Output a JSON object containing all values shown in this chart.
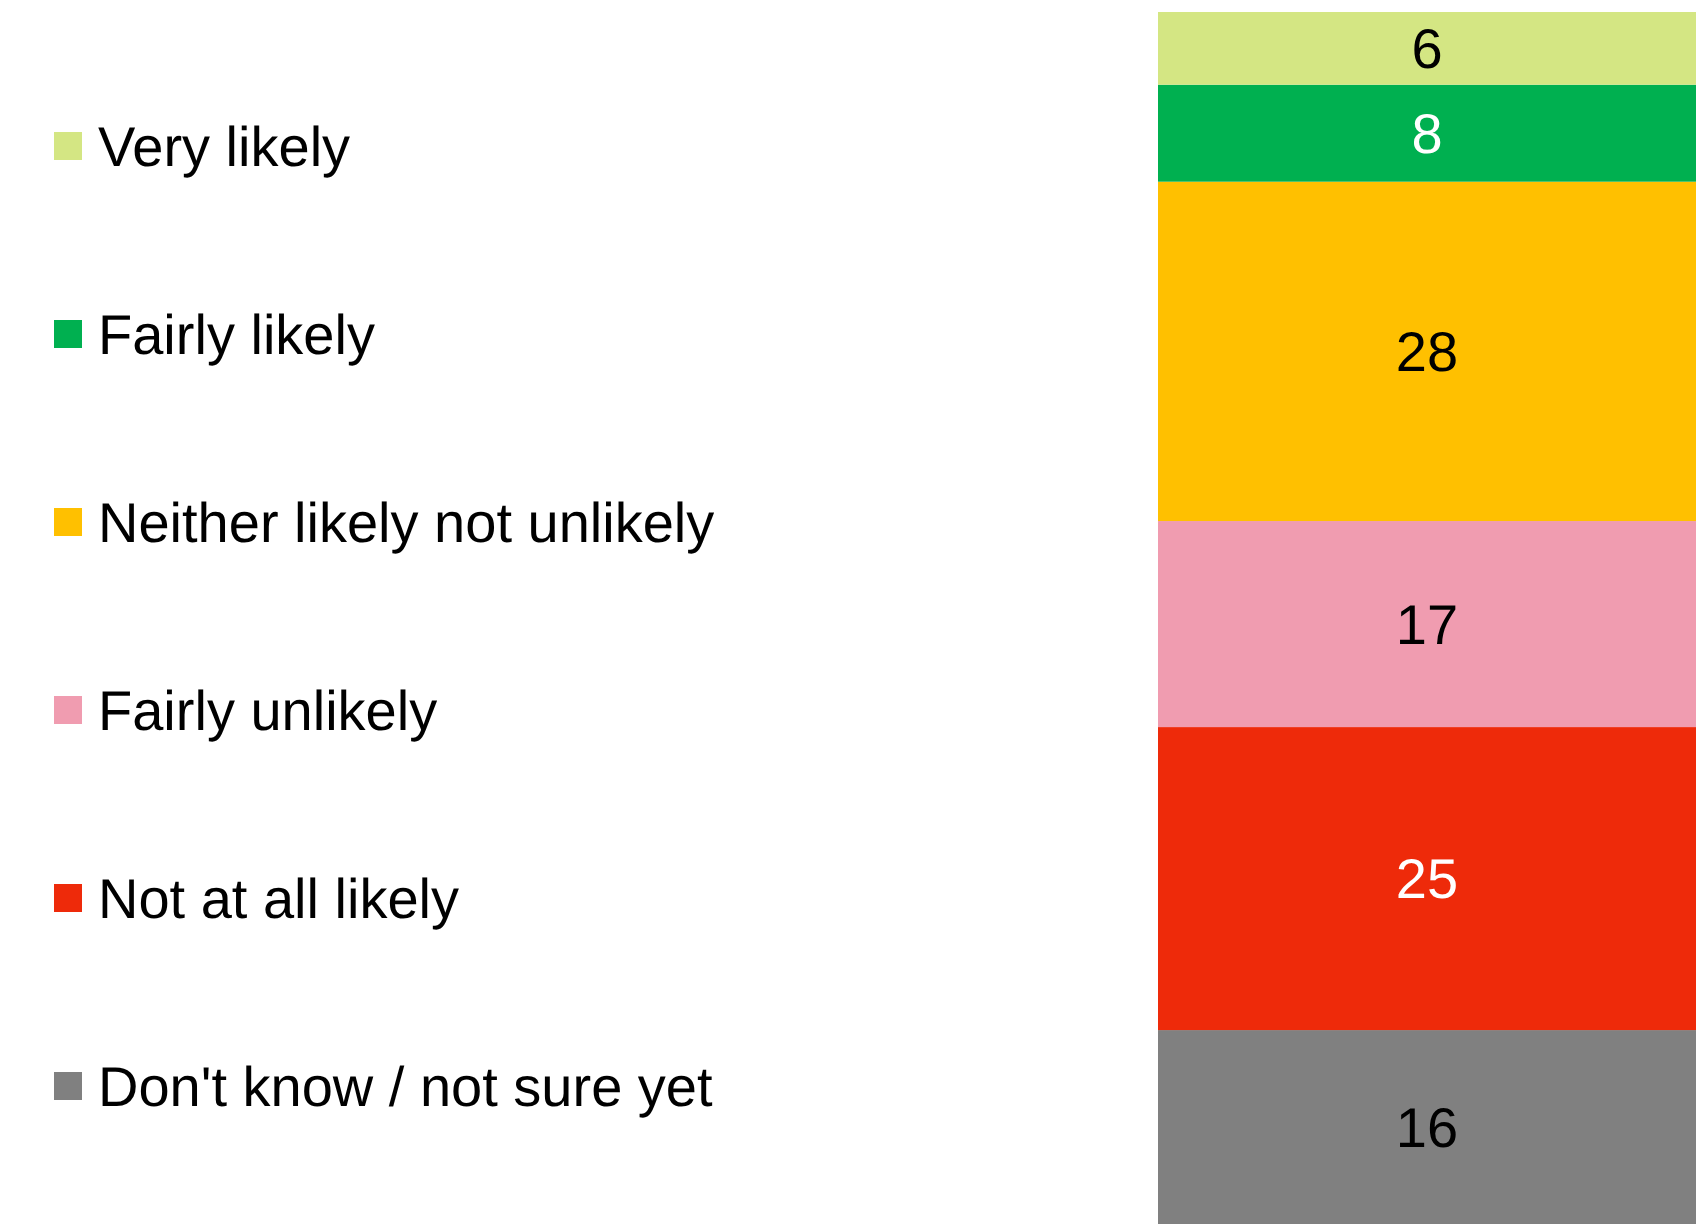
{
  "chart_data": {
    "type": "bar",
    "stacked": true,
    "categories": [
      null
    ],
    "ylim": [
      0,
      100
    ],
    "legend": "left",
    "data_labels": true,
    "series": [
      {
        "name": "Don't know / not sure yet",
        "color": "#808080",
        "values": [
          16
        ]
      },
      {
        "name": "Not at all likely",
        "color": "#ee2a0a",
        "values": [
          25
        ]
      },
      {
        "name": "Fairly unlikely",
        "color": "#f09cb0",
        "values": [
          17
        ]
      },
      {
        "name": "Neither likely not unlikely",
        "color": "#ffc000",
        "values": [
          28
        ]
      },
      {
        "name": "Fairly likely",
        "color": "#00b050",
        "values": [
          8
        ]
      },
      {
        "name": "Very likely",
        "color": "#d4e683",
        "values": [
          6
        ]
      }
    ]
  }
}
